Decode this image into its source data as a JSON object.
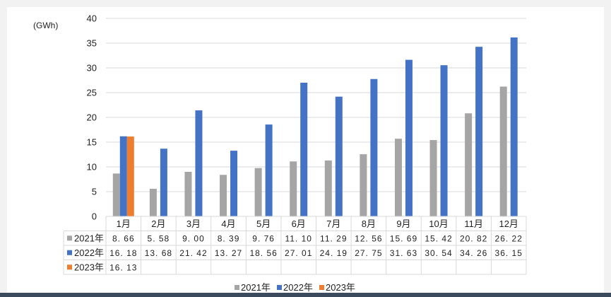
{
  "chart_data": {
    "type": "bar",
    "unit_label": "(GWh)",
    "categories": [
      "1月",
      "2月",
      "3月",
      "4月",
      "5月",
      "6月",
      "7月",
      "8月",
      "9月",
      "10月",
      "11月",
      "12月"
    ],
    "series": [
      {
        "name": "2021年",
        "color": "#a5a5a5",
        "values": [
          8.66,
          5.58,
          9.0,
          8.39,
          9.76,
          11.1,
          11.29,
          12.56,
          15.69,
          15.42,
          20.82,
          26.22
        ],
        "labels": [
          "8. 66",
          "5. 58",
          "9. 00",
          "8. 39",
          "9. 76",
          "11. 10",
          "11. 29",
          "12. 56",
          "15. 69",
          "15. 42",
          "20. 82",
          "26. 22"
        ]
      },
      {
        "name": "2022年",
        "color": "#4472c4",
        "values": [
          16.18,
          13.68,
          21.42,
          13.27,
          18.56,
          27.01,
          24.19,
          27.75,
          31.63,
          30.54,
          34.26,
          36.15
        ],
        "labels": [
          "16. 18",
          "13. 68",
          "21. 42",
          "13. 27",
          "18. 56",
          "27. 01",
          "24. 19",
          "27. 75",
          "31. 63",
          "30. 54",
          "34. 26",
          "36. 15"
        ]
      },
      {
        "name": "2023年",
        "color": "#ed7d31",
        "values": [
          16.13,
          null,
          null,
          null,
          null,
          null,
          null,
          null,
          null,
          null,
          null,
          null
        ],
        "labels": [
          "16. 13",
          "",
          "",
          "",
          "",
          "",
          "",
          "",
          "",
          "",
          "",
          ""
        ]
      }
    ],
    "ylim": [
      0,
      40
    ],
    "yticks": [
      0,
      5,
      10,
      15,
      20,
      25,
      30,
      35,
      40
    ],
    "grid": true,
    "legend": "bottom-center",
    "table": true
  }
}
